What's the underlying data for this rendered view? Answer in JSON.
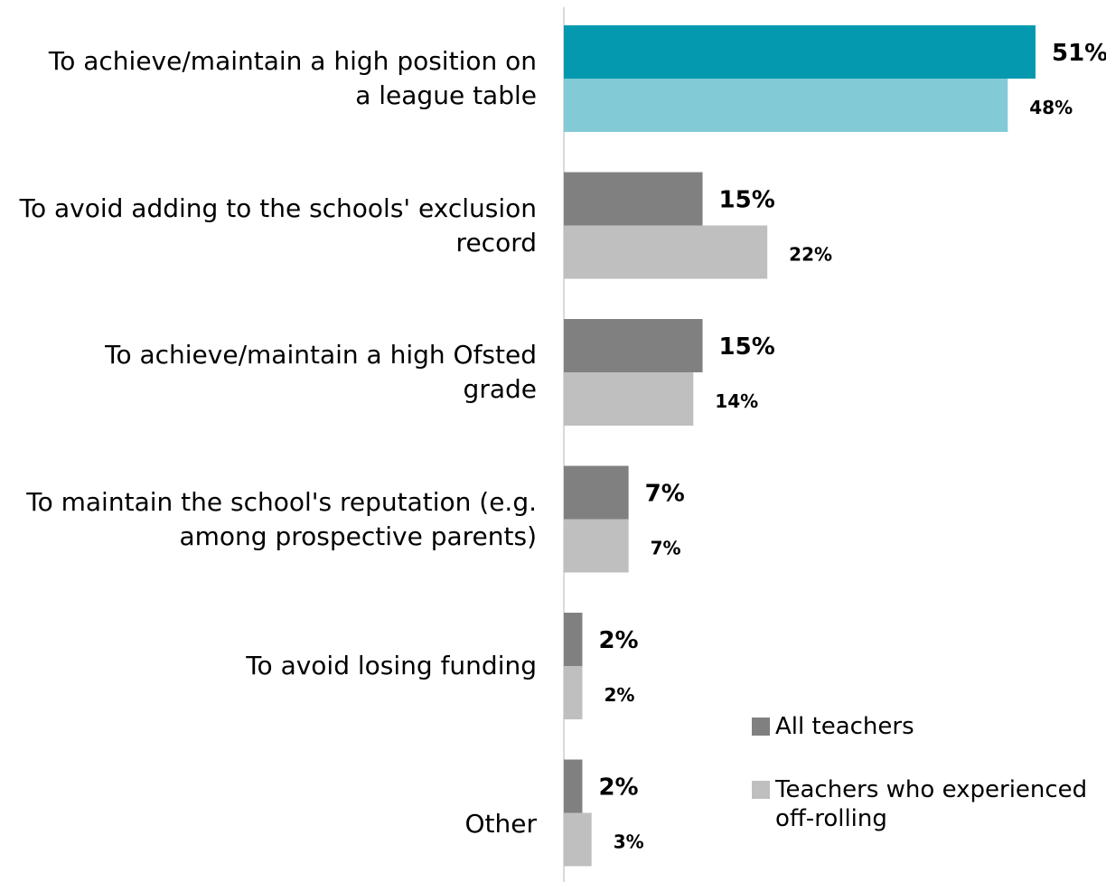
{
  "chart_data": {
    "type": "bar",
    "orientation": "horizontal",
    "categories": [
      "To achieve/maintain a high position on a league table",
      "To avoid adding to the schools' exclusion record",
      "To achieve/maintain a high Ofsted grade",
      "To maintain the school's reputation (e.g. among prospective parents)",
      "To avoid losing funding",
      "Other"
    ],
    "series": [
      {
        "name": "All teachers",
        "values": [
          51,
          15,
          15,
          7,
          2,
          2
        ],
        "labels": [
          "51%",
          "15%",
          "15%",
          "7%",
          "2%",
          "2%"
        ]
      },
      {
        "name": "Teachers who experienced off-rolling",
        "values": [
          48,
          22,
          14,
          7,
          2,
          3
        ],
        "labels": [
          "48%",
          "22%",
          "14%",
          "7%",
          "2%",
          "3%"
        ]
      }
    ],
    "colors": {
      "all_teachers": "#808080",
      "off_rolling": "#bfbfbf",
      "highlight_all_teachers": "#0599b0",
      "highlight_off_rolling": "#82cbd6",
      "axis": "#d9d9d9"
    },
    "highlight_index": 0,
    "xlim": [
      0,
      51
    ],
    "grid": false,
    "legend_position": "bottom-right"
  }
}
